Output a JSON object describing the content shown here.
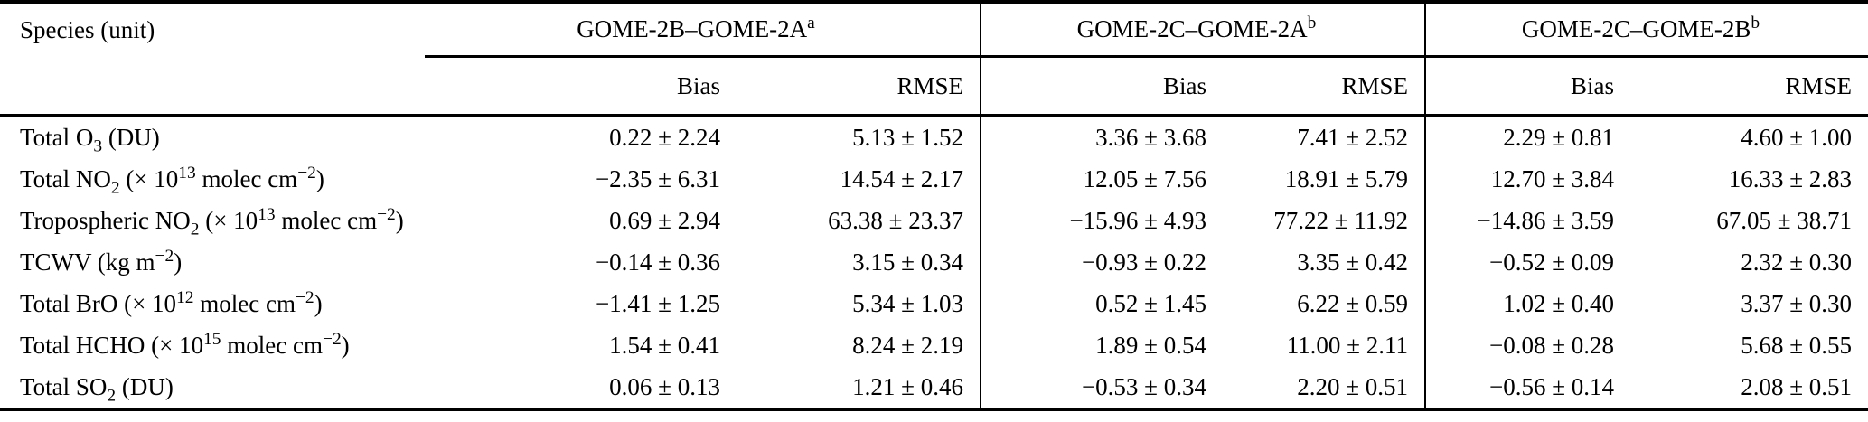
{
  "colors": {
    "text": "#000000",
    "background": "#ffffff",
    "rule": "#000000"
  },
  "table": {
    "species_header": "Species (unit)",
    "groups": [
      {
        "label": "GOME-2B–GOME-2A",
        "footnote": "a"
      },
      {
        "label": "GOME-2C–GOME-2A",
        "footnote": "b"
      },
      {
        "label": "GOME-2C–GOME-2B",
        "footnote": "b"
      }
    ],
    "subheaders": [
      "Bias",
      "RMSE"
    ],
    "rows": [
      {
        "species": "Total O~3~ (DU)",
        "values": [
          "0.22 ± 2.24",
          "5.13 ± 1.52",
          "3.36 ± 3.68",
          "7.41 ± 2.52",
          "2.29 ± 0.81",
          "4.60 ± 1.00"
        ]
      },
      {
        "species": "Total NO~2~ (× 10^13^ molec cm^−2^)",
        "values": [
          "−2.35 ± 6.31",
          "14.54 ± 2.17",
          "12.05 ± 7.56",
          "18.91 ± 5.79",
          "12.70 ± 3.84",
          "16.33 ± 2.83"
        ]
      },
      {
        "species": "Tropospheric NO~2~ (× 10^13^ molec cm^−2^)",
        "values": [
          "0.69 ± 2.94",
          "63.38 ± 23.37",
          "−15.96 ± 4.93",
          "77.22 ± 11.92",
          "−14.86 ± 3.59",
          "67.05 ± 38.71"
        ]
      },
      {
        "species": "TCWV (kg m^−2^)",
        "values": [
          "−0.14 ± 0.36",
          "3.15 ± 0.34",
          "−0.93 ± 0.22",
          "3.35 ± 0.42",
          "−0.52 ± 0.09",
          "2.32 ± 0.30"
        ]
      },
      {
        "species": "Total BrO (× 10^12^ molec cm^−2^)",
        "values": [
          "−1.41 ± 1.25",
          "5.34 ± 1.03",
          "0.52 ± 1.45",
          "6.22 ± 0.59",
          "1.02 ± 0.40",
          "3.37 ± 0.30"
        ]
      },
      {
        "species": "Total HCHO (× 10^15^ molec cm^−2^)",
        "values": [
          "1.54 ± 0.41",
          "8.24 ± 2.19",
          "1.89 ± 0.54",
          "11.00 ± 2.11",
          "−0.08 ± 0.28",
          "5.68 ± 0.55"
        ]
      },
      {
        "species": "Total SO~2~ (DU)",
        "values": [
          "0.06 ± 0.13",
          "1.21 ± 0.46",
          "−0.53 ± 0.34",
          "2.20 ± 0.51",
          "−0.56 ± 0.14",
          "2.08 ± 0.51"
        ]
      }
    ]
  }
}
